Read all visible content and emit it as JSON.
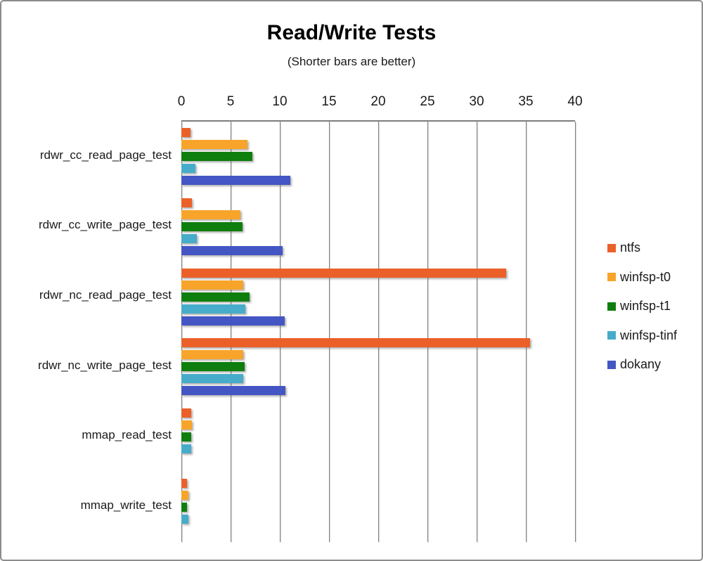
{
  "title": "Read/Write Tests",
  "subtitle": "(Shorter bars are better)",
  "colors": {
    "axis_line": "#7d7d7d",
    "frame_border": "#8c8c8c",
    "text": "#1a1a1a",
    "ntfs": "#eb6029",
    "winfsp_t0": "#f8a42a",
    "winfsp_t1": "#0e7e0e",
    "winfsp_tinf": "#47acc9",
    "dokany": "#4456c4"
  },
  "chart_data": {
    "type": "bar",
    "orientation": "horizontal",
    "title": "Read/Write Tests",
    "subtitle": "(Shorter bars are better)",
    "xlabel": "",
    "ylabel": "",
    "xlim": [
      0,
      40
    ],
    "xticks": [
      0,
      5,
      10,
      15,
      20,
      25,
      30,
      35,
      40
    ],
    "grid": true,
    "legend_position": "right",
    "categories": [
      "rdwr_cc_read_page_test",
      "rdwr_cc_write_page_test",
      "rdwr_nc_read_page_test",
      "rdwr_nc_write_page_test",
      "mmap_read_test",
      "mmap_write_test"
    ],
    "series": [
      {
        "name": "ntfs",
        "color": "#eb6029",
        "values": [
          0.9,
          1.1,
          33.0,
          35.4,
          1.0,
          0.6
        ]
      },
      {
        "name": "winfsp-t0",
        "color": "#f8a42a",
        "values": [
          6.7,
          6.0,
          6.3,
          6.3,
          1.1,
          0.7
        ]
      },
      {
        "name": "winfsp-t1",
        "color": "#0e7e0e",
        "values": [
          7.2,
          6.2,
          6.9,
          6.4,
          1.0,
          0.6
        ]
      },
      {
        "name": "winfsp-tinf",
        "color": "#47acc9",
        "values": [
          1.4,
          1.6,
          6.5,
          6.3,
          1.0,
          0.7
        ]
      },
      {
        "name": "dokany",
        "color": "#4456c4",
        "values": [
          11.1,
          10.3,
          10.5,
          10.6,
          0,
          0
        ]
      }
    ]
  }
}
